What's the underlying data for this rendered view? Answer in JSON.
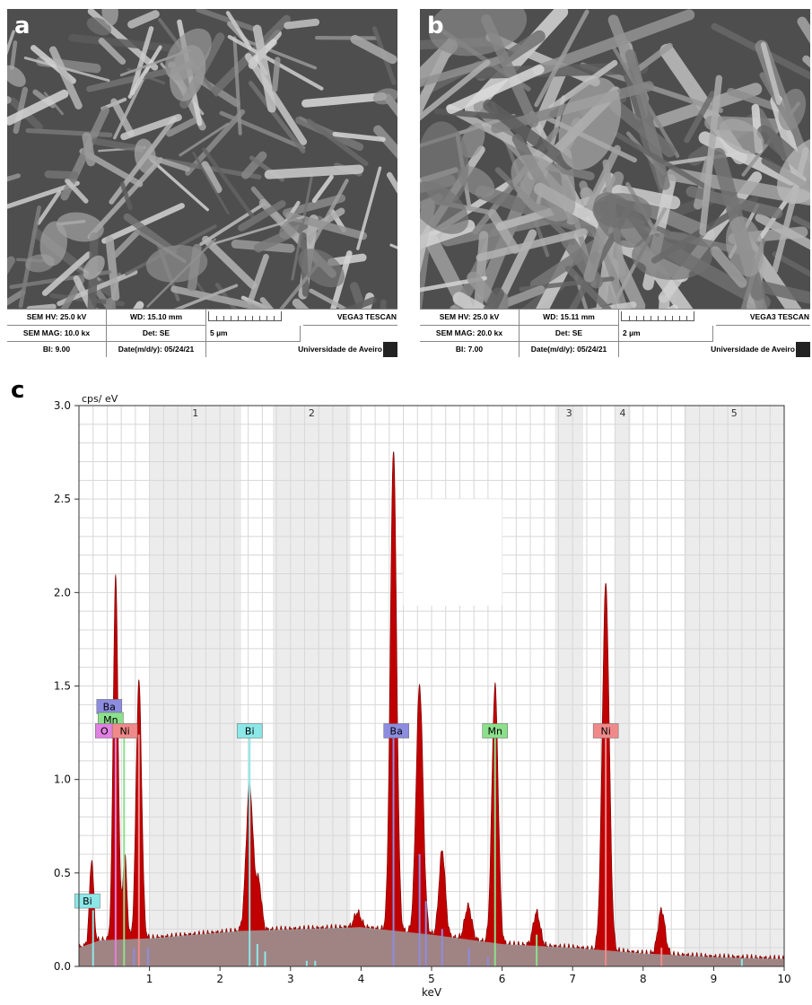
{
  "panels": {
    "a": {
      "label": "a",
      "hv": "SEM HV: 25.0 kV",
      "wd": "WD: 15.10 mm",
      "brand": "VEGA3 TESCAN",
      "mag": "SEM MAG: 10.0 kx",
      "det": "Det: SE",
      "scale": "5 µm",
      "bi": "BI: 9.00",
      "date": "Date(m/d/y): 05/24/21",
      "univ": "Universidade de Aveiro"
    },
    "b": {
      "label": "b",
      "hv": "SEM HV: 25.0 kV",
      "wd": "WD: 15.11 mm",
      "brand": "VEGA3 TESCAN",
      "mag": "SEM MAG: 20.0 kx",
      "det": "Det: SE",
      "scale": "2 µm",
      "bi": "BI: 7.00",
      "date": "Date(m/d/y): 05/24/21",
      "univ": "Universidade de Aveiro"
    },
    "c": {
      "label": "c"
    }
  },
  "colors": {
    "spectrum": "#c00000",
    "spectrum_edge": "#7a0000",
    "background": "#9a9a9a",
    "band": "#ececec",
    "grid": "#d7d7d7",
    "sem_bg": "#5a5a5a",
    "Ba": "#8c8ce0",
    "Mn": "#8ce08c",
    "O": "#e080e0",
    "Ni": "#f08a8a",
    "Bi": "#8ce8e8"
  },
  "chart_data": {
    "type": "area",
    "ylabel": "cps/ eV",
    "xlabel": "keV",
    "xlim": [
      0,
      10
    ],
    "ylim": [
      0,
      3.0
    ],
    "xticks": [
      "1",
      "2",
      "3",
      "4",
      "5",
      "6",
      "7",
      "8",
      "9",
      "10"
    ],
    "yticks": [
      "0.0",
      "0.5",
      "1.0",
      "1.5",
      "2.0",
      "2.5",
      "3.0"
    ],
    "grid": true,
    "regions": [
      {
        "label": "1",
        "x0": 1.0,
        "x1": 2.3
      },
      {
        "label": "2",
        "x0": 2.75,
        "x1": 3.85
      },
      {
        "label": "3",
        "x0": 6.75,
        "x1": 7.15
      },
      {
        "label": "4",
        "x0": 7.6,
        "x1": 7.82
      },
      {
        "label": "5",
        "x0": 8.58,
        "x1": 10.0
      }
    ],
    "peaks": [
      {
        "x": 0.18,
        "y": 0.45,
        "w": 0.03
      },
      {
        "x": 0.52,
        "y": 1.95,
        "w": 0.035
      },
      {
        "x": 0.65,
        "y": 0.45,
        "w": 0.03
      },
      {
        "x": 0.85,
        "y": 1.38,
        "w": 0.04
      },
      {
        "x": 2.42,
        "y": 0.78,
        "w": 0.05
      },
      {
        "x": 2.55,
        "y": 0.25,
        "w": 0.04
      },
      {
        "x": 3.95,
        "y": 0.08,
        "w": 0.05
      },
      {
        "x": 4.46,
        "y": 2.58,
        "w": 0.045
      },
      {
        "x": 4.83,
        "y": 1.33,
        "w": 0.05
      },
      {
        "x": 5.15,
        "y": 0.46,
        "w": 0.045
      },
      {
        "x": 5.52,
        "y": 0.18,
        "w": 0.05
      },
      {
        "x": 5.9,
        "y": 1.38,
        "w": 0.045
      },
      {
        "x": 6.49,
        "y": 0.18,
        "w": 0.05
      },
      {
        "x": 7.47,
        "y": 1.96,
        "w": 0.05
      },
      {
        "x": 8.26,
        "y": 0.24,
        "w": 0.05
      }
    ],
    "background_curve": [
      [
        0.0,
        0.1
      ],
      [
        0.3,
        0.14
      ],
      [
        1.0,
        0.15
      ],
      [
        2.3,
        0.19
      ],
      [
        4.0,
        0.21
      ],
      [
        5.0,
        0.17
      ],
      [
        6.0,
        0.12
      ],
      [
        7.0,
        0.1
      ],
      [
        8.0,
        0.07
      ],
      [
        9.0,
        0.05
      ],
      [
        10.0,
        0.04
      ]
    ],
    "element_labels": [
      {
        "el": "Ba",
        "x": 0.43,
        "y": 1.39,
        "anchor": 0.53
      },
      {
        "el": "Mn",
        "x": 0.45,
        "y": 1.32,
        "anchor": 0.64
      },
      {
        "el": "O",
        "x": 0.36,
        "y": 1.26,
        "anchor": 0.52
      },
      {
        "el": "Ni",
        "x": 0.65,
        "y": 1.26,
        "anchor": 0.85
      },
      {
        "el": "Bi",
        "x": 2.42,
        "y": 1.26,
        "anchor": 2.42
      },
      {
        "el": "Ba",
        "x": 4.5,
        "y": 1.26,
        "anchor": 4.46
      },
      {
        "el": "Mn",
        "x": 5.9,
        "y": 1.26,
        "anchor": 5.9
      },
      {
        "el": "Ni",
        "x": 7.47,
        "y": 1.26,
        "anchor": 7.47
      },
      {
        "el": "Bi",
        "x": 0.12,
        "y": 0.35,
        "anchor": 0.12
      }
    ],
    "markers": [
      {
        "el": "Bi",
        "x": 0.2,
        "h": 0.3
      },
      {
        "el": "O",
        "x": 0.52,
        "h": 1.24
      },
      {
        "el": "Mn",
        "x": 0.64,
        "h": 1.3
      },
      {
        "el": "Ni",
        "x": 0.85,
        "h": 1.24
      },
      {
        "el": "Ba",
        "x": 0.78,
        "h": 0.1
      },
      {
        "el": "Ba",
        "x": 0.98,
        "h": 0.1
      },
      {
        "el": "Bi",
        "x": 2.42,
        "h": 1.24
      },
      {
        "el": "Bi",
        "x": 2.53,
        "h": 0.12
      },
      {
        "el": "Bi",
        "x": 2.64,
        "h": 0.08
      },
      {
        "el": "Bi",
        "x": 3.23,
        "h": 0.03
      },
      {
        "el": "Bi",
        "x": 3.35,
        "h": 0.03
      },
      {
        "el": "Ba",
        "x": 4.46,
        "h": 1.24
      },
      {
        "el": "Ba",
        "x": 4.83,
        "h": 0.6
      },
      {
        "el": "Ba",
        "x": 4.92,
        "h": 0.35
      },
      {
        "el": "Ba",
        "x": 5.15,
        "h": 0.2
      },
      {
        "el": "Ba",
        "x": 5.53,
        "h": 0.1
      },
      {
        "el": "Ba",
        "x": 5.8,
        "h": 0.05
      },
      {
        "el": "Mn",
        "x": 5.9,
        "h": 1.24
      },
      {
        "el": "Mn",
        "x": 6.49,
        "h": 0.17
      },
      {
        "el": "Ni",
        "x": 7.47,
        "h": 1.24
      },
      {
        "el": "Ni",
        "x": 8.26,
        "h": 0.1
      },
      {
        "el": "Bi",
        "x": 9.4,
        "h": 0.04
      }
    ]
  }
}
